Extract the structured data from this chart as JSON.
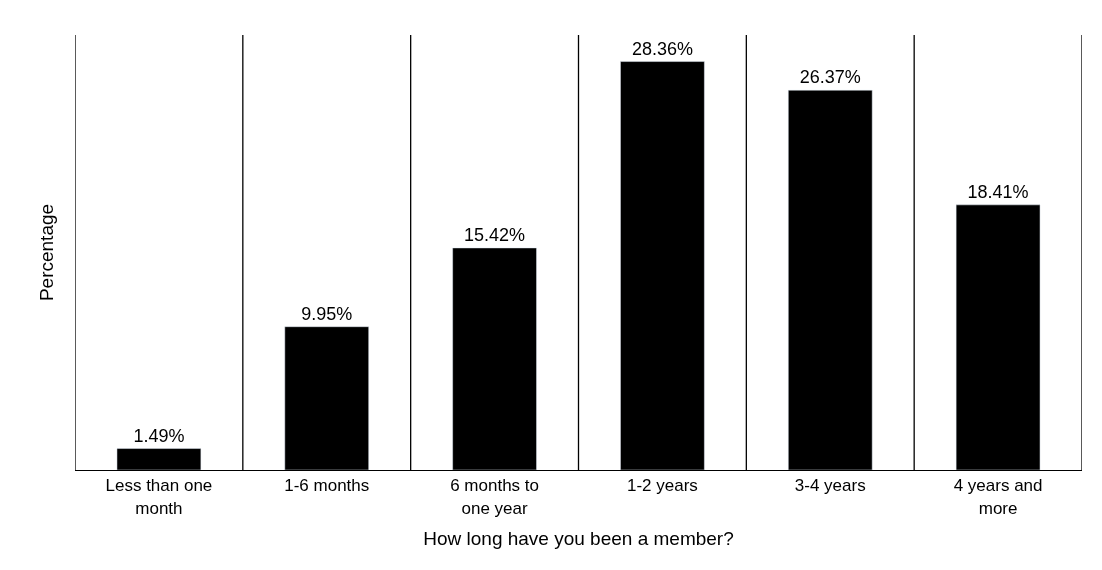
{
  "chart_data": {
    "type": "bar",
    "xlabel": "How long have you been a member?",
    "ylabel": "Percentage",
    "categories": [
      "Less than one month",
      "1-6 months",
      "6 months to one year",
      "1-2 years",
      "3-4 years",
      "4 years and more"
    ],
    "values": [
      1.49,
      9.95,
      15.42,
      28.36,
      26.37,
      18.41
    ],
    "color": "#000000",
    "value_labels": [
      "1.49%",
      "9.95%",
      "15.42%",
      "28.36%",
      "26.37%",
      "18.41%"
    ],
    "grid": "x",
    "tick_labels": "x"
  }
}
